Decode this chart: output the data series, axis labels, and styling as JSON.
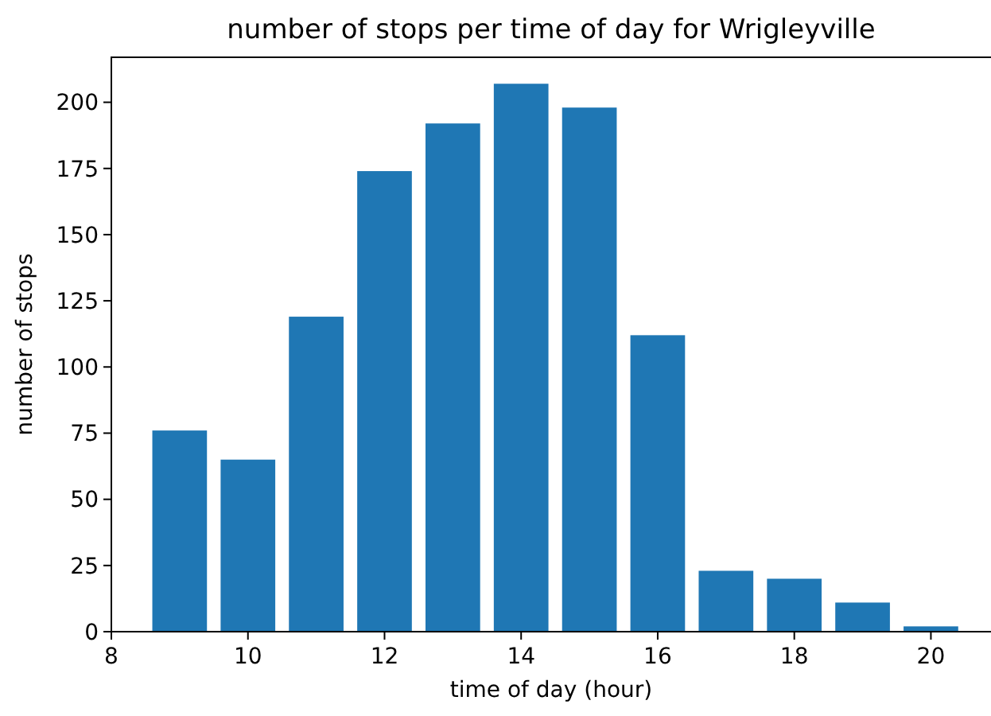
{
  "chart_data": {
    "type": "bar",
    "title": "number of stops per time of day for Wrigleyville",
    "xlabel": "time of day (hour)",
    "ylabel": "number of stops",
    "x": [
      9,
      10,
      11,
      12,
      13,
      14,
      15,
      16,
      17,
      18,
      19,
      20
    ],
    "values": [
      76,
      65,
      119,
      174,
      192,
      207,
      198,
      112,
      23,
      20,
      11,
      2
    ],
    "color": "#1f77b4",
    "xlim": [
      8,
      20.95
    ],
    "xticks": [
      8,
      10,
      12,
      14,
      16,
      18,
      20
    ],
    "ylim": [
      0,
      217
    ],
    "yticks": [
      0,
      25,
      50,
      75,
      100,
      125,
      150,
      175,
      200
    ],
    "grid": false
  }
}
